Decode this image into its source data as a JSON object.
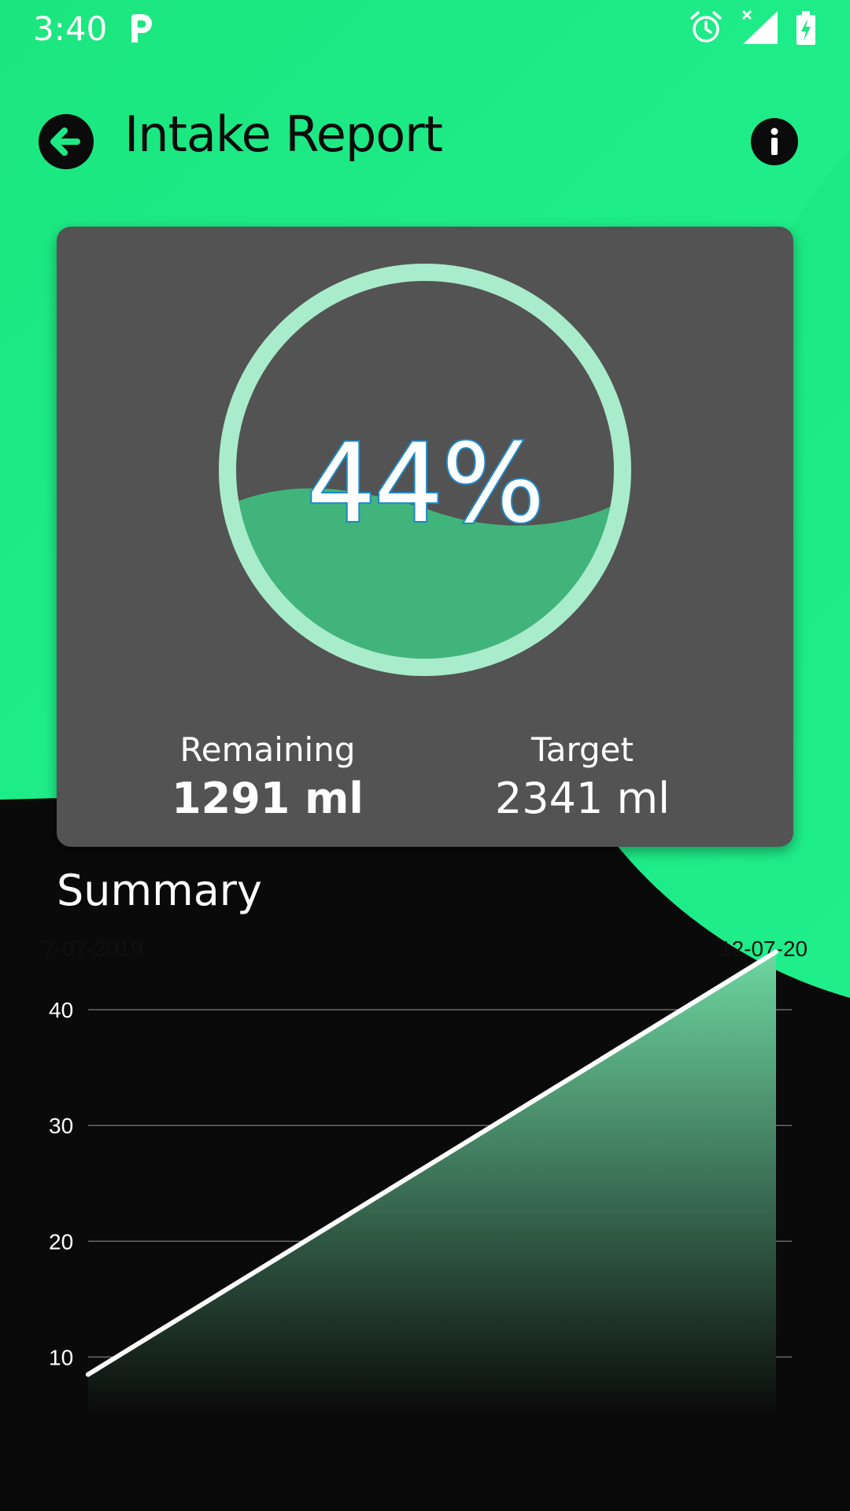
{
  "status_bar": {
    "time": "3:40",
    "icons": [
      "p-icon",
      "alarm-icon",
      "signal-icon",
      "battery-icon"
    ]
  },
  "header": {
    "title": "Intake Report",
    "back_icon": "arrow-left-icon",
    "info_icon": "info-icon"
  },
  "progress": {
    "percent_label": "44%",
    "fill_fraction": 0.44,
    "remaining_label": "Remaining",
    "remaining_value": "1291 ml",
    "target_label": "Target",
    "target_value": "2341 ml"
  },
  "summary": {
    "title": "Summary"
  },
  "colors": {
    "accent_green": "#1de985",
    "card_bg": "#535353",
    "ring": "#a9eccb",
    "wave_front": "#41b47b",
    "wave_back": "#3f8a63",
    "percent_outline": "#1e88c8"
  },
  "chart_data": {
    "type": "area",
    "x": [
      "7-07-2019",
      "12-07-20"
    ],
    "values": [
      8.5,
      45
    ],
    "yticks": [
      10,
      20,
      30,
      40
    ],
    "ylim": [
      5,
      47
    ],
    "grid": true,
    "title": "",
    "xlabel": "",
    "ylabel": ""
  }
}
